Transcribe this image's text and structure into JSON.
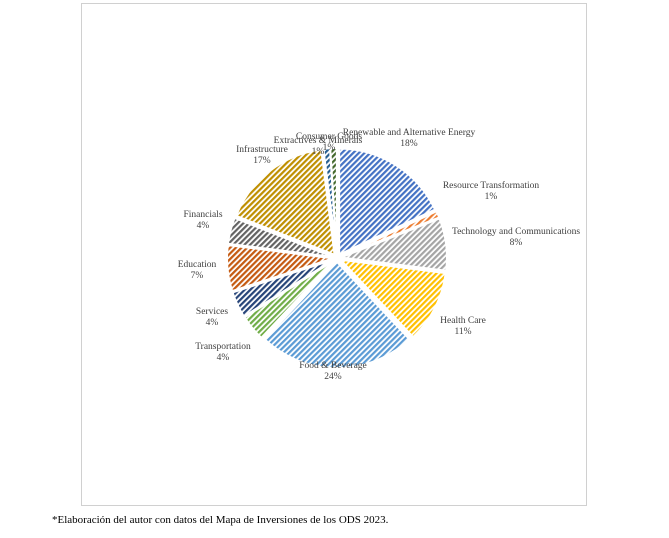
{
  "chart_data": {
    "type": "pie",
    "style": "exploded, diagonal hatch fills",
    "legend": "none",
    "slices": [
      {
        "label": "Renewable and Alternative Energy",
        "value": 18,
        "value_label": "18%",
        "color": "#4472c4"
      },
      {
        "label": "Resource Transformation",
        "value": 1,
        "value_label": "1%",
        "color": "#ed7d31"
      },
      {
        "label": "Technology and Communications",
        "value": 8,
        "value_label": "8%",
        "color": "#a5a5a5"
      },
      {
        "label": "Health Care",
        "value": 11,
        "value_label": "11%",
        "color": "#ffc000"
      },
      {
        "label": "Food & Beverage",
        "value": 24,
        "value_label": "24%",
        "color": "#5b9bd5"
      },
      {
        "label": "Transportation",
        "value": 4,
        "value_label": "4%",
        "color": "#70ad47"
      },
      {
        "label": "Services",
        "value": 4,
        "value_label": "4%",
        "color": "#264478"
      },
      {
        "label": "Education",
        "value": 7,
        "value_label": "7%",
        "color": "#c55a11"
      },
      {
        "label": "Financials",
        "value": 4,
        "value_label": "4%",
        "color": "#636363"
      },
      {
        "label": "Infrastructure",
        "value": 17,
        "value_label": "17%",
        "color": "#bf8f00"
      },
      {
        "label": "Extractives & Minerals",
        "value": 1,
        "value_label": "1%",
        "color": "#255e91"
      },
      {
        "label": "Consumer Goods",
        "value": 1,
        "value_label": "1%",
        "color": "#43682b"
      }
    ]
  },
  "footnote": "*Elaboración del autor con datos del Mapa de Inversiones de los ODS 2023."
}
